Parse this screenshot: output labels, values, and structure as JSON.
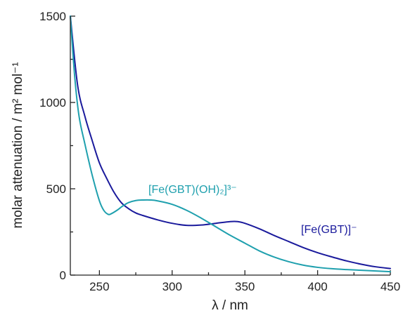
{
  "chart_data": {
    "type": "line",
    "xlabel": "λ / nm",
    "ylabel": "molar attenuation / m² mol⁻¹",
    "xlim": [
      230,
      450
    ],
    "ylim": [
      0,
      1500
    ],
    "x_ticks": [
      250,
      300,
      350,
      400,
      450
    ],
    "y_ticks": [
      0,
      500,
      1000,
      1500
    ],
    "x_minor_step": 25,
    "y_minor_step": 250,
    "grid": false,
    "legend": "inline labels",
    "series": [
      {
        "name": "[Fe(GBT)]⁻",
        "color": "#1a1a9c",
        "x": [
          230,
          235,
          240,
          245,
          250,
          255,
          260,
          265,
          270,
          275,
          280,
          290,
          300,
          310,
          320,
          330,
          340,
          345,
          350,
          360,
          370,
          380,
          390,
          400,
          410,
          420,
          430,
          440,
          450
        ],
        "y": [
          1500,
          1100,
          920,
          780,
          650,
          560,
          480,
          420,
          385,
          360,
          345,
          320,
          300,
          288,
          290,
          300,
          310,
          310,
          300,
          268,
          230,
          195,
          160,
          130,
          105,
          82,
          63,
          48,
          38
        ]
      },
      {
        "name": "[Fe(GBT)(OH)₂]³⁻",
        "color": "#1fa0ae",
        "x": [
          230,
          233,
          236,
          240,
          245,
          250,
          253,
          256,
          258,
          262,
          266,
          270,
          275,
          280,
          285,
          290,
          300,
          310,
          320,
          330,
          340,
          350,
          360,
          370,
          380,
          390,
          400,
          410,
          420,
          430,
          440,
          450
        ],
        "y": [
          1500,
          1150,
          920,
          760,
          580,
          430,
          375,
          352,
          355,
          375,
          400,
          420,
          432,
          435,
          435,
          430,
          410,
          375,
          330,
          280,
          230,
          185,
          140,
          105,
          78,
          58,
          45,
          37,
          32,
          28,
          24,
          20
        ]
      }
    ]
  }
}
